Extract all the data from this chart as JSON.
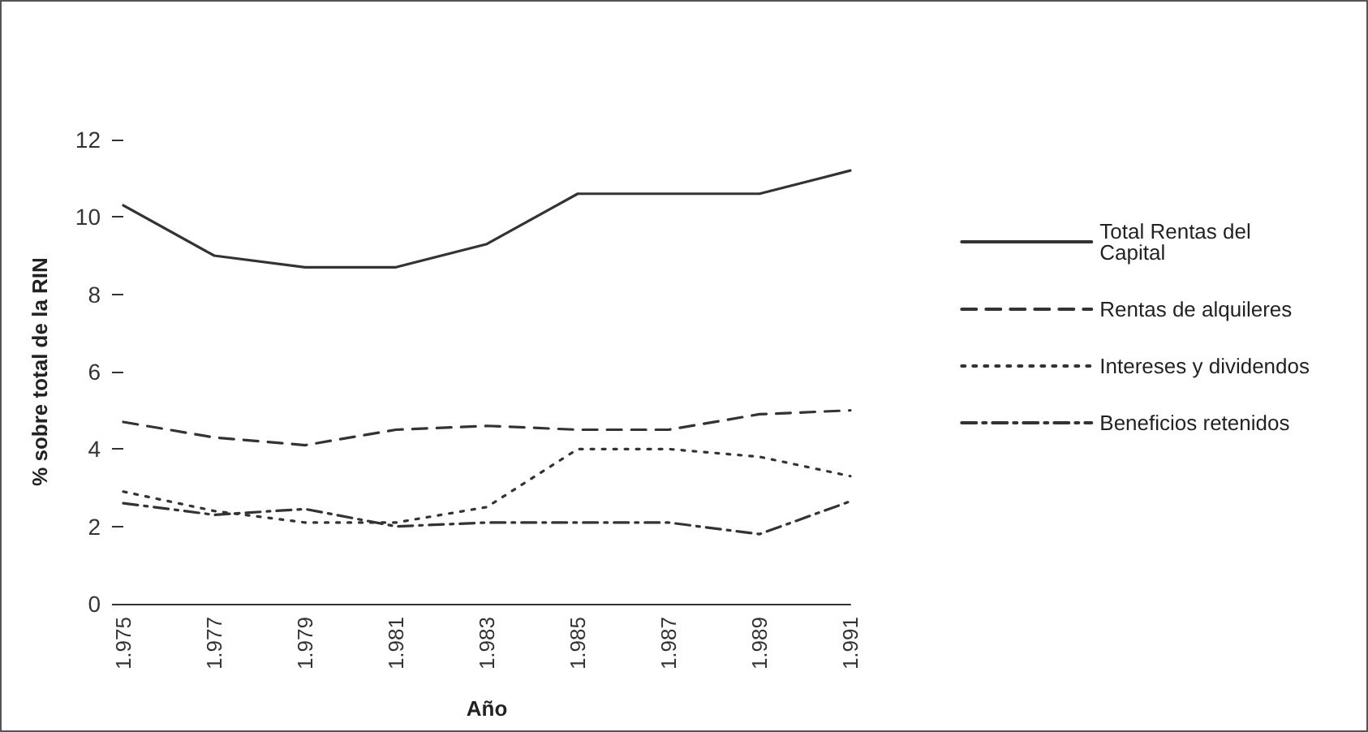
{
  "chart_data": {
    "type": "line",
    "xlabel": "Año",
    "ylabel": "% sobre total de la RIN",
    "categories": [
      "1.975",
      "1.977",
      "1.979",
      "1.981",
      "1.983",
      "1.985",
      "1.987",
      "1.989",
      "1.991"
    ],
    "series": [
      {
        "name": "Total Rentas del Capital",
        "color": "#333333",
        "line_style": "solid",
        "values": [
          10.3,
          9.0,
          8.7,
          8.7,
          9.3,
          10.6,
          10.6,
          10.6,
          11.2
        ]
      },
      {
        "name": "Rentas de alquileres",
        "color": "#333333",
        "line_style": "dashed",
        "values": [
          4.7,
          4.3,
          4.1,
          4.5,
          4.6,
          4.5,
          4.5,
          4.9,
          5.0
        ]
      },
      {
        "name": "Intereses y dividendos",
        "color": "#333333",
        "line_style": "dotted",
        "values": [
          2.9,
          2.4,
          2.1,
          2.1,
          2.5,
          4.0,
          4.0,
          3.8,
          3.3
        ]
      },
      {
        "name": "Beneficios retenidos",
        "color": "#333333",
        "line_style": "dashdot",
        "values": [
          2.6,
          2.3,
          2.45,
          2.0,
          2.1,
          2.1,
          2.1,
          1.8,
          2.65
        ]
      }
    ],
    "ylim": [
      0,
      12
    ],
    "yticks": [
      0,
      2,
      4,
      6,
      8,
      10,
      12
    ],
    "grid": false,
    "legend": "right",
    "marker": "none"
  }
}
